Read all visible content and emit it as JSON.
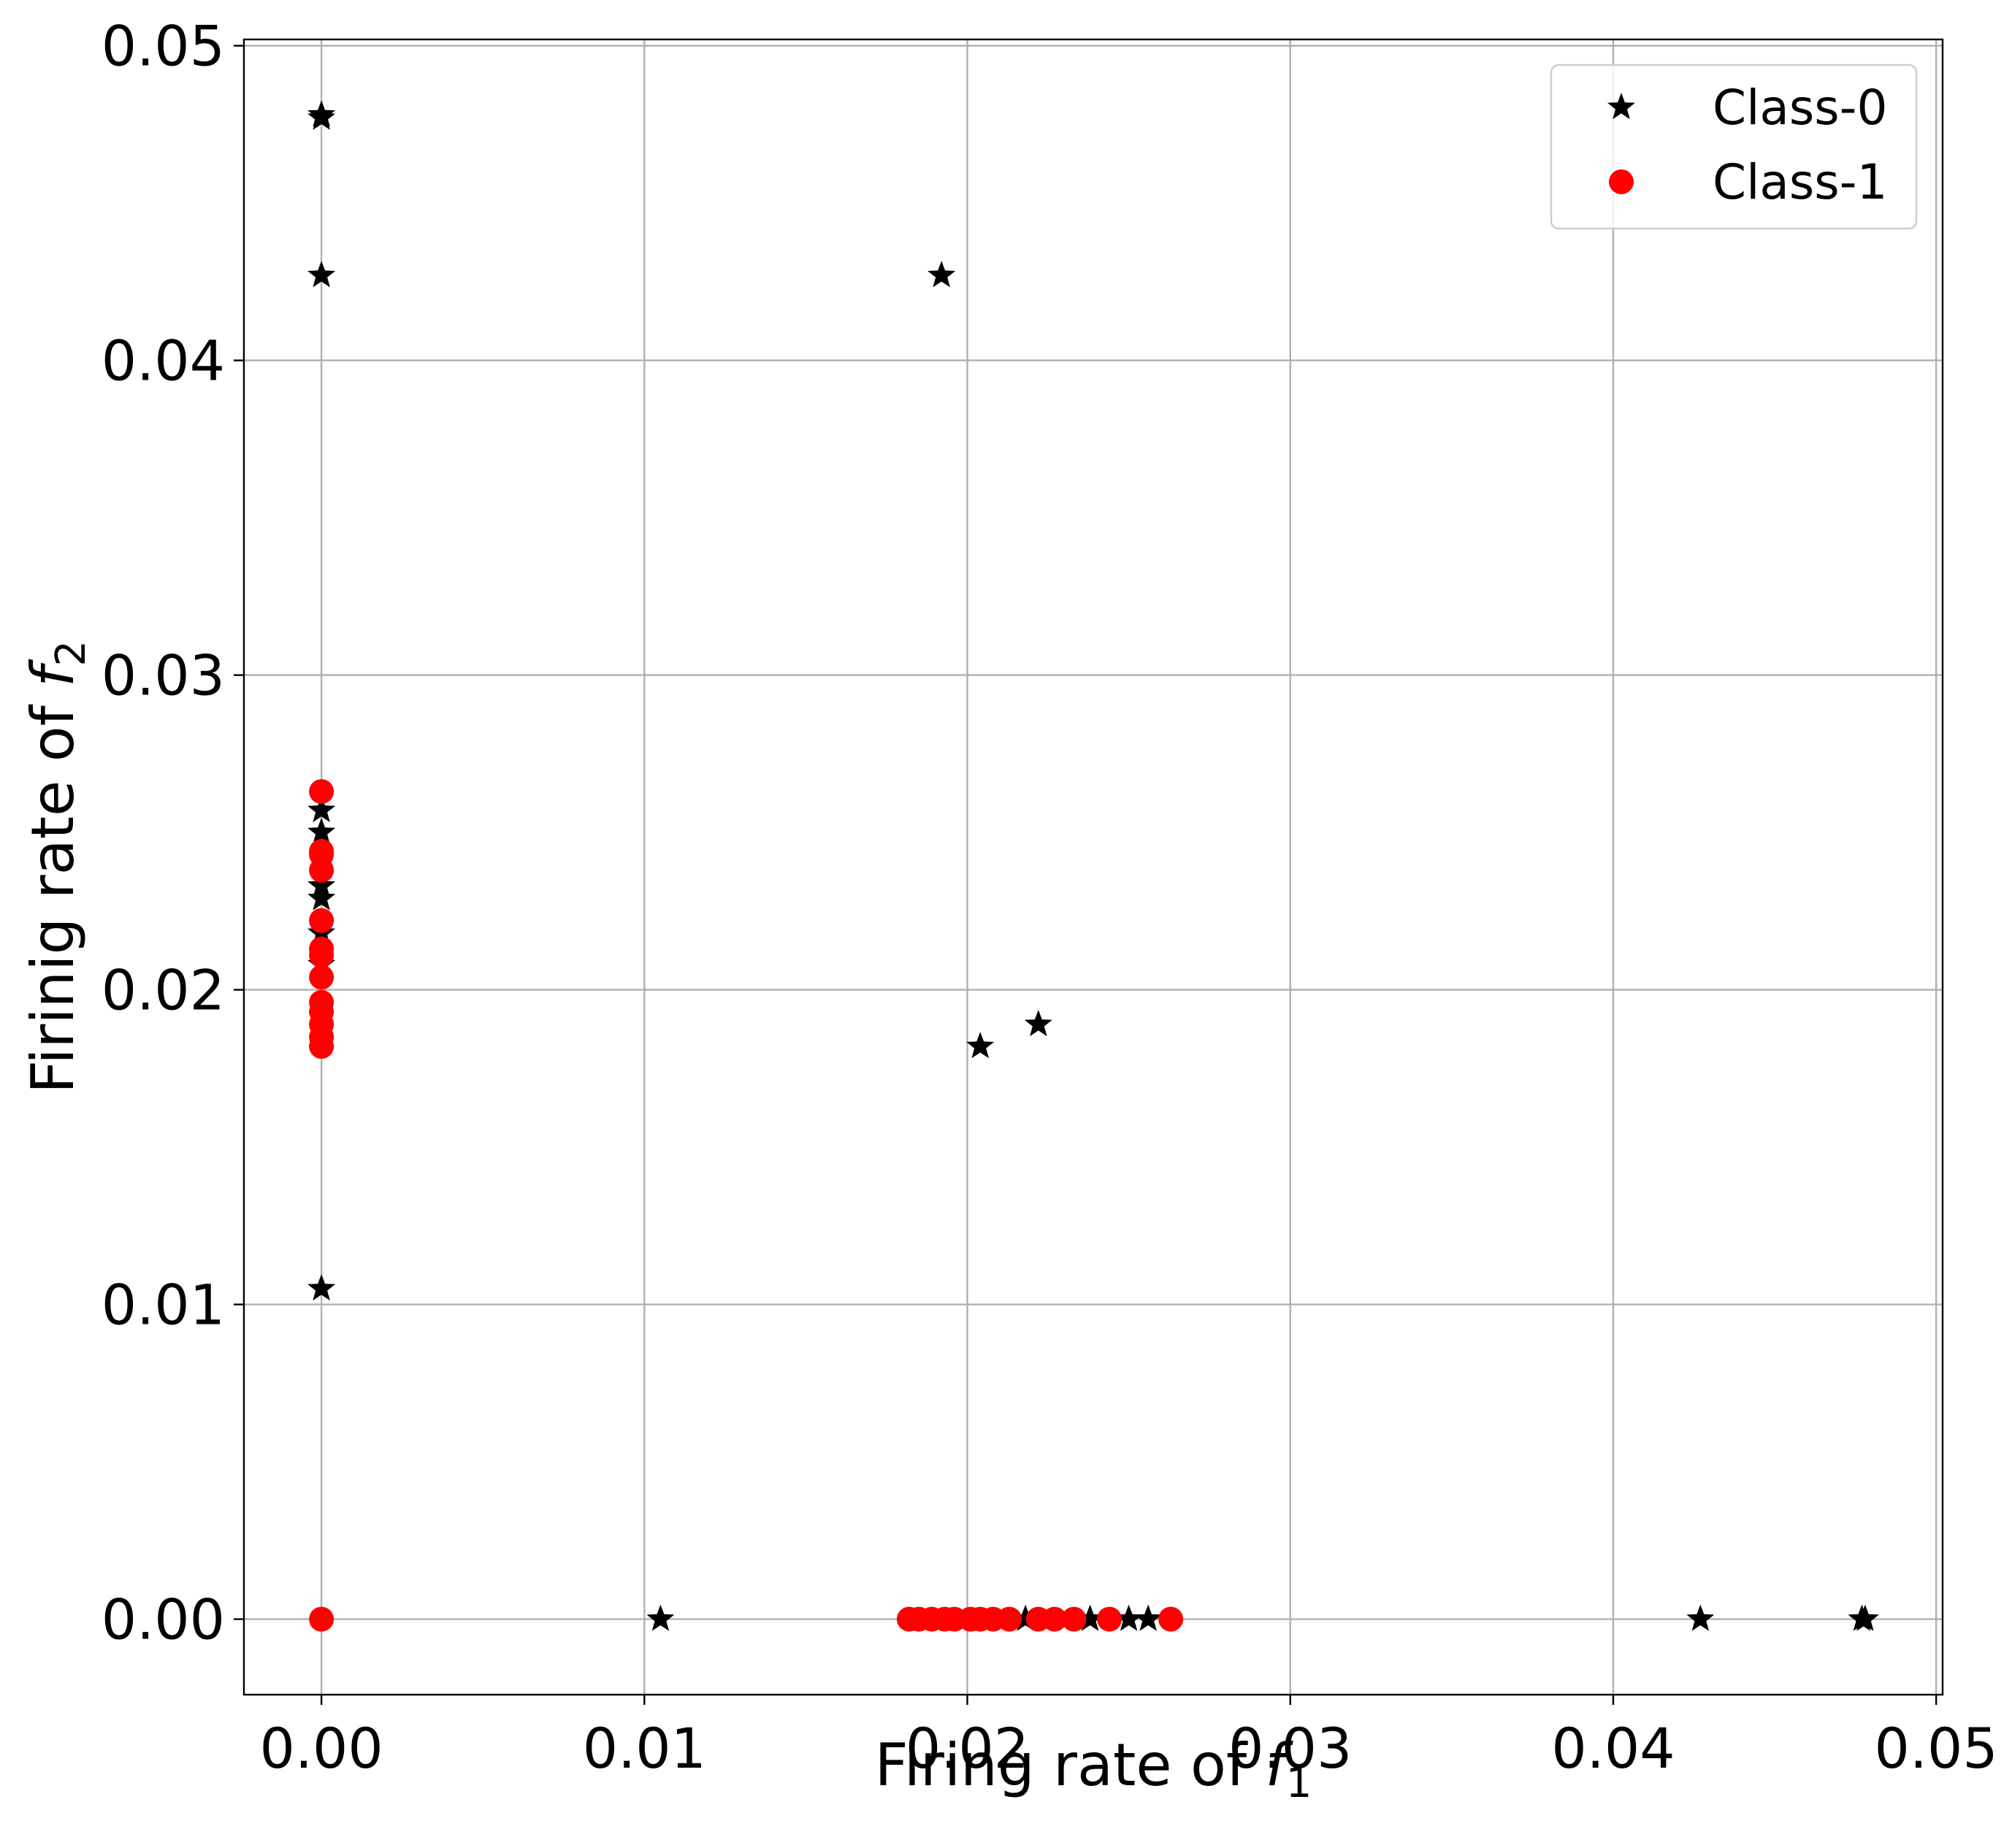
{
  "chart_data": {
    "type": "scatter",
    "xlabel": {
      "prefix": "Firing rate of ",
      "var": "f",
      "sub": "1"
    },
    "ylabel": {
      "prefix": "Firinig rate of ",
      "var": "f",
      "sub": "2"
    },
    "xlim": [
      -0.0024,
      0.0502
    ],
    "ylim": [
      -0.0024,
      0.0502
    ],
    "xticks": [
      0.0,
      0.01,
      0.02,
      0.03,
      0.04,
      0.05
    ],
    "yticks": [
      0.0,
      0.01,
      0.02,
      0.03,
      0.04,
      0.05
    ],
    "tick_labels": [
      "0.00",
      "0.01",
      "0.02",
      "0.03",
      "0.04",
      "0.05"
    ],
    "grid": true,
    "legend_position": "top-right",
    "series": [
      {
        "name": "Class-0",
        "marker": "star",
        "color": "#000000",
        "points": [
          [
            0.0,
            0.0478
          ],
          [
            0.0,
            0.0477
          ],
          [
            0.0,
            0.0427
          ],
          [
            0.0,
            0.0105
          ],
          [
            0.0,
            0.0257
          ],
          [
            0.0,
            0.025
          ],
          [
            0.0,
            0.0233
          ],
          [
            0.0,
            0.0229
          ],
          [
            0.0,
            0.0218
          ],
          [
            0.0,
            0.0208
          ],
          [
            0.0192,
            0.0427
          ],
          [
            0.0204,
            0.0182
          ],
          [
            0.0222,
            0.0189
          ],
          [
            0.0105,
            0.0
          ],
          [
            0.0218,
            0.0
          ],
          [
            0.0238,
            0.0
          ],
          [
            0.025,
            0.0
          ],
          [
            0.0256,
            0.0
          ],
          [
            0.0427,
            0.0
          ],
          [
            0.0477,
            0.0
          ],
          [
            0.0478,
            0.0
          ]
        ]
      },
      {
        "name": "Class-1",
        "marker": "circle",
        "color": "#ff0000",
        "points": [
          [
            0.0,
            0.0
          ],
          [
            0.0,
            0.0263
          ],
          [
            0.0,
            0.0244
          ],
          [
            0.0,
            0.0243
          ],
          [
            0.0,
            0.0238
          ],
          [
            0.0,
            0.0222
          ],
          [
            0.0,
            0.0213
          ],
          [
            0.0,
            0.0211
          ],
          [
            0.0,
            0.0204
          ],
          [
            0.0,
            0.0196
          ],
          [
            0.0,
            0.0193
          ],
          [
            0.0,
            0.0189
          ],
          [
            0.0,
            0.0185
          ],
          [
            0.0,
            0.0182
          ],
          [
            0.0182,
            0.0
          ],
          [
            0.0185,
            0.0
          ],
          [
            0.0189,
            0.0
          ],
          [
            0.0193,
            0.0
          ],
          [
            0.0196,
            0.0
          ],
          [
            0.0201,
            0.0
          ],
          [
            0.0204,
            0.0
          ],
          [
            0.0208,
            0.0
          ],
          [
            0.0213,
            0.0
          ],
          [
            0.0222,
            0.0
          ],
          [
            0.0227,
            0.0
          ],
          [
            0.0233,
            0.0
          ],
          [
            0.0244,
            0.0
          ],
          [
            0.0263,
            0.0
          ]
        ]
      }
    ]
  }
}
